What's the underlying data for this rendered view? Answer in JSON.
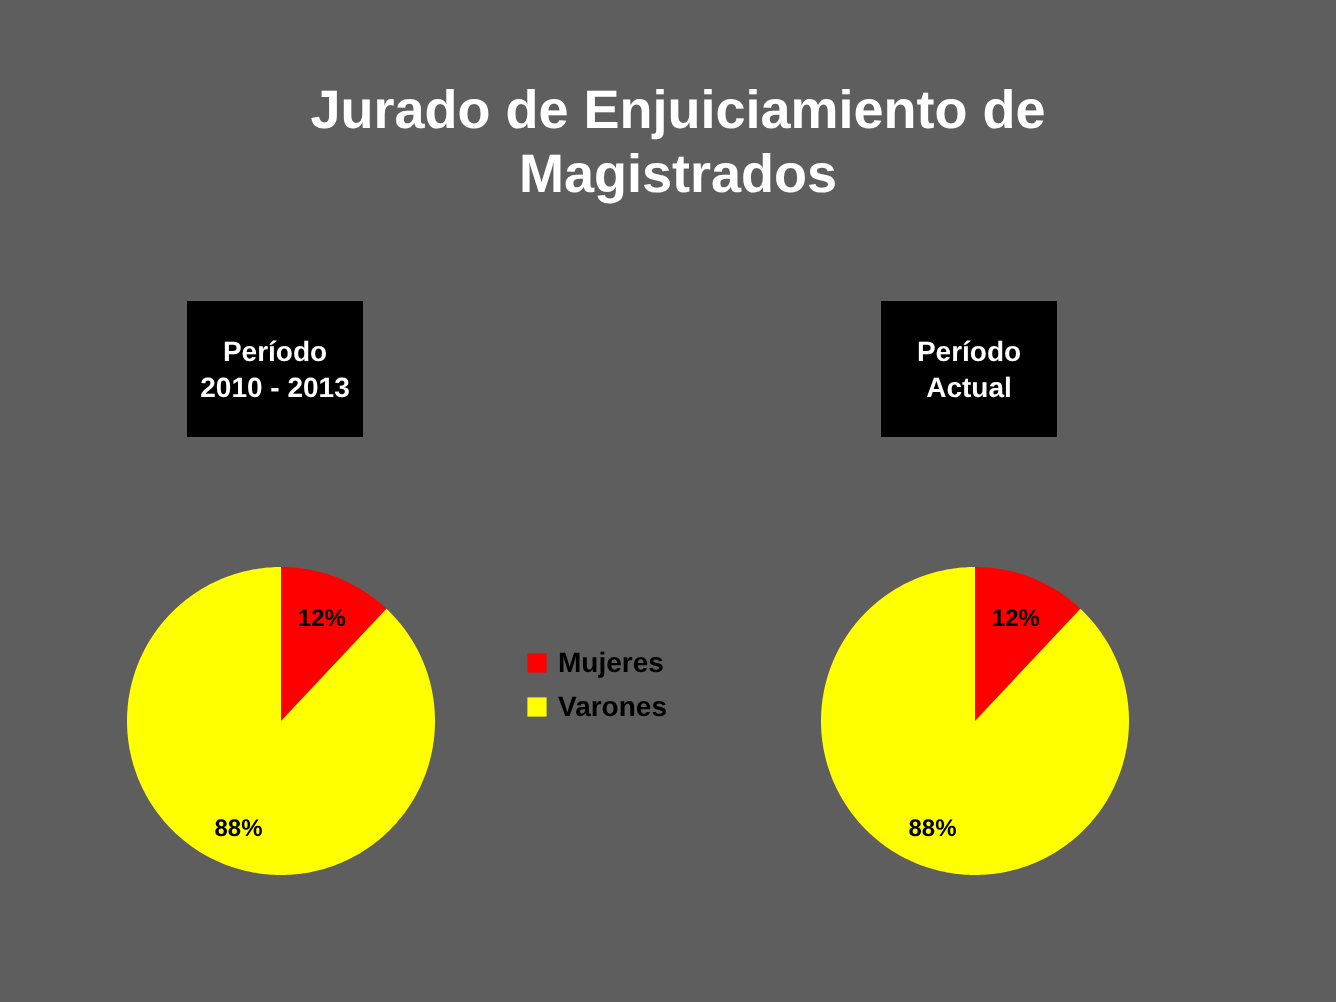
{
  "chart_data": [
    {
      "type": "pie",
      "title": "Jurado de Enjuiciamiento de Magistrados",
      "subtitle": "Período 2010 - 2013",
      "categories": [
        "Mujeres",
        "Varones"
      ],
      "values": [
        12,
        88
      ],
      "value_labels": [
        "12%",
        "88%"
      ],
      "colors": [
        "#ff0000",
        "#ffff00"
      ],
      "legend": "right"
    },
    {
      "type": "pie",
      "subtitle": "Período Actual",
      "values": [
        12,
        88
      ],
      "value_labels": [
        "12%",
        "88%"
      ],
      "colors": [
        "#ff0000",
        "#ffff00"
      ]
    }
  ]
}
